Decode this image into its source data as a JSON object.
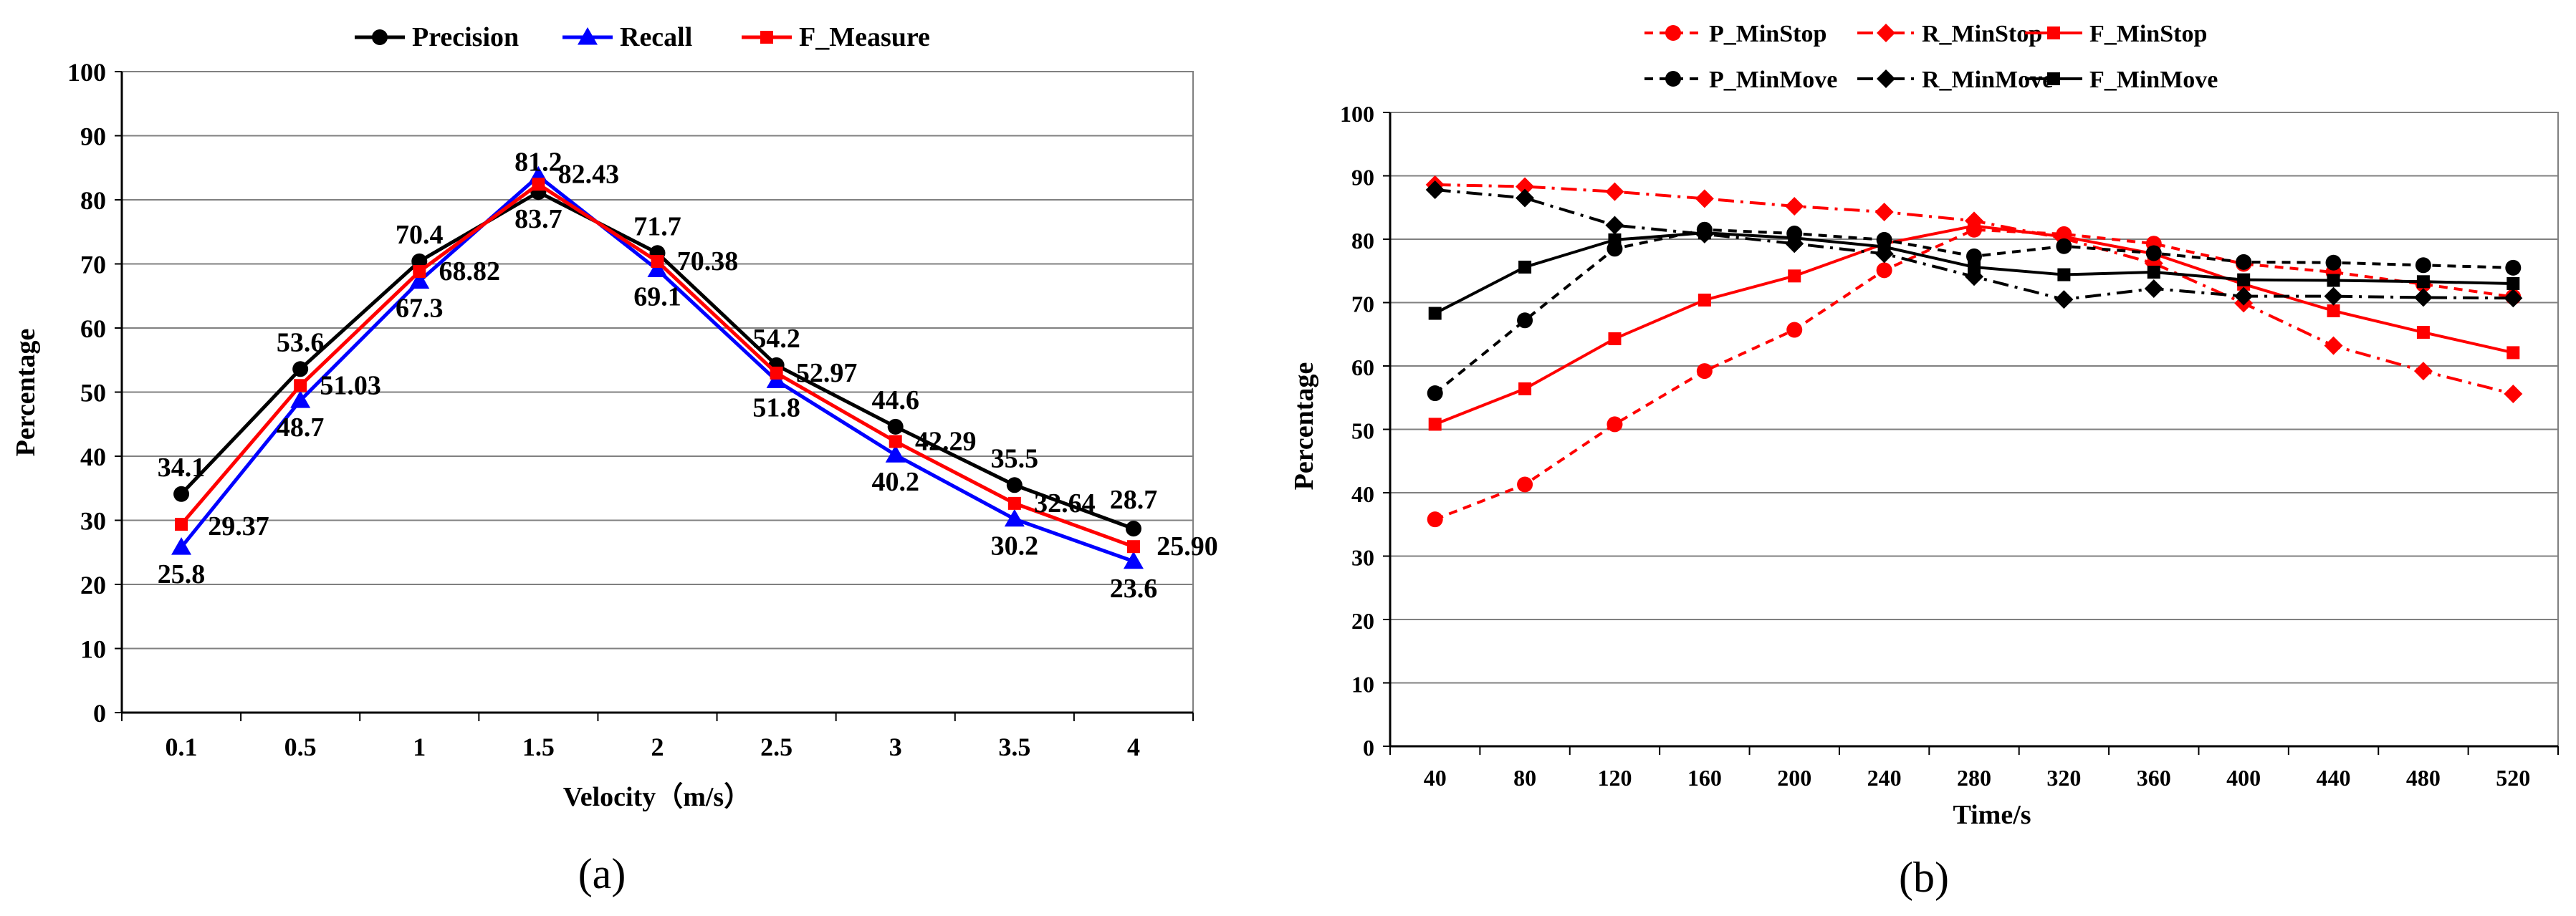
{
  "chart_data": [
    {
      "type": "line",
      "panel_label": "(a)",
      "xlabel": "Velocity（m/s）",
      "ylabel": "Percentage",
      "ylim": [
        0,
        100
      ],
      "ytick_step": 10,
      "categories": [
        "0.1",
        "0.5",
        "1",
        "1.5",
        "2",
        "2.5",
        "3",
        "3.5",
        "4"
      ],
      "legend_position": "top",
      "grid": true,
      "series": [
        {
          "name": "Precision",
          "color": "#000000",
          "marker": "circle",
          "values": [
            34.1,
            53.6,
            70.4,
            81.2,
            71.7,
            54.2,
            44.6,
            35.5,
            28.7
          ],
          "labels": [
            "34.1",
            "53.6",
            "70.4",
            "81.2",
            "71.7",
            "54.2",
            "44.6",
            "35.5",
            "28.7"
          ]
        },
        {
          "name": "Recall",
          "color": "#0000ff",
          "marker": "triangle",
          "values": [
            25.8,
            48.7,
            67.3,
            83.7,
            69.1,
            51.8,
            40.2,
            30.2,
            23.6
          ],
          "labels": [
            "25.8",
            "48.7",
            "67.3",
            "83.7",
            "69.1",
            "51.8",
            "40.2",
            "30.2",
            "23.6"
          ]
        },
        {
          "name": "F_Measure",
          "color": "#ff0000",
          "marker": "square",
          "values": [
            29.37,
            51.03,
            68.82,
            82.43,
            70.38,
            52.97,
            42.29,
            32.64,
            25.9
          ],
          "labels": [
            "29.37",
            "51.03",
            "68.82",
            "82.43",
            "70.38",
            "52.97",
            "42.29",
            "32.64",
            "25.90"
          ]
        }
      ]
    },
    {
      "type": "line",
      "panel_label": "(b)",
      "xlabel": "Time/s",
      "ylabel": "Percentage",
      "ylim": [
        0,
        100
      ],
      "ytick_step": 10,
      "categories": [
        "40",
        "80",
        "120",
        "160",
        "200",
        "240",
        "280",
        "320",
        "360",
        "400",
        "440",
        "480",
        "520"
      ],
      "legend_position": "top",
      "grid": true,
      "series": [
        {
          "name": "P_MinStop",
          "color": "#ff0000",
          "marker": "circle",
          "dash": "short-dash",
          "values": [
            35.8,
            41.3,
            50.8,
            59.2,
            65.7,
            75.1,
            81.5,
            80.8,
            79.3,
            76.1,
            74.8,
            72.9,
            70.9
          ]
        },
        {
          "name": "R_MinStop",
          "color": "#ff0000",
          "marker": "diamond",
          "dash": "dash-dot",
          "values": [
            88.6,
            88.3,
            87.5,
            86.4,
            85.2,
            84.3,
            82.9,
            80.1,
            76.2,
            69.9,
            63.2,
            59.2,
            55.6
          ]
        },
        {
          "name": "F_MinStop",
          "color": "#ff0000",
          "marker": "square",
          "dash": "solid",
          "values": [
            50.8,
            56.4,
            64.3,
            70.4,
            74.2,
            79.3,
            82.1,
            80.4,
            77.7,
            72.9,
            68.7,
            65.3,
            62.1
          ]
        },
        {
          "name": "P_MinMove",
          "color": "#000000",
          "marker": "circle",
          "dash": "short-dash",
          "values": [
            55.7,
            67.2,
            78.5,
            81.5,
            80.9,
            79.9,
            77.3,
            78.9,
            77.8,
            76.4,
            76.3,
            75.9,
            75.5
          ]
        },
        {
          "name": "R_MinMove",
          "color": "#000000",
          "marker": "diamond",
          "dash": "dash-dot",
          "values": [
            87.8,
            86.5,
            82.2,
            80.8,
            79.3,
            77.7,
            74.1,
            70.5,
            72.2,
            71.0,
            71.0,
            70.8,
            70.7
          ]
        },
        {
          "name": "F_MinMove",
          "color": "#000000",
          "marker": "square",
          "dash": "solid",
          "values": [
            68.3,
            75.6,
            79.9,
            81.0,
            80.2,
            78.8,
            75.6,
            74.4,
            74.8,
            73.6,
            73.5,
            73.3,
            73.0
          ]
        }
      ]
    }
  ]
}
